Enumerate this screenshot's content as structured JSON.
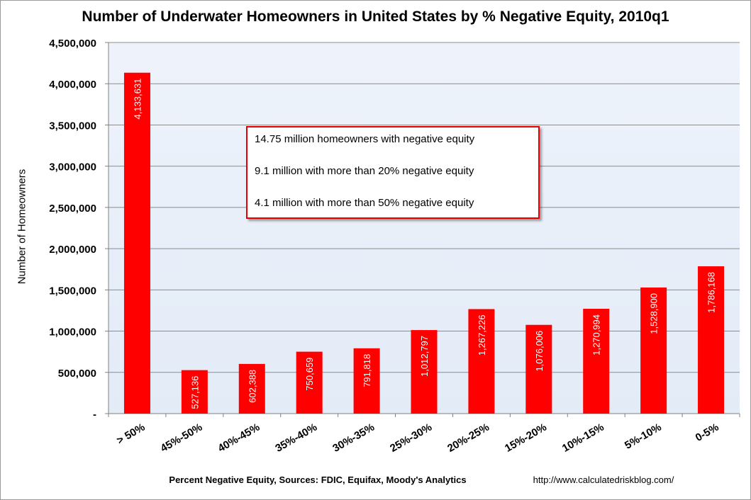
{
  "chart_data": {
    "type": "bar",
    "title": "Number of Underwater Homeowners in United States by % Negative Equity, 2010q1",
    "xlabel": "Percent Negative Equity, Sources: FDIC, Equifax, Moody's Analytics",
    "ylabel": "Number of Homeowners",
    "source": "http://www.calculatedriskblog.com/",
    "categories": [
      "> 50%",
      "45%-50%",
      "40%-45%",
      "35%-40%",
      "30%-35%",
      "25%-30%",
      "20%-25%",
      "15%-20%",
      "10%-15%",
      "5%-10%",
      "0-5%"
    ],
    "values": [
      4133631,
      527136,
      602388,
      750659,
      791818,
      1012797,
      1267226,
      1076006,
      1270994,
      1528900,
      1786168
    ],
    "data_labels": [
      "4,133,631",
      "527,136",
      "602,388",
      "750,659",
      "791,818",
      "1,012,797",
      "1,267,226",
      "1,076,006",
      "1,270,994",
      "1,528,900",
      "1,786,168"
    ],
    "ylim": [
      0,
      4500000
    ],
    "y_ticks": [
      0,
      500000,
      1000000,
      1500000,
      2000000,
      2500000,
      3000000,
      3500000,
      4000000,
      4500000
    ],
    "y_tick_labels": [
      "-",
      "500,000",
      "1,000,000",
      "1,500,000",
      "2,000,000",
      "2,500,000",
      "3,000,000",
      "3,500,000",
      "4,000,000",
      "4,500,000"
    ],
    "grid": true,
    "legend": false,
    "bar_color": "#ff0000",
    "plot_background": "#e9f0fa",
    "annotations": [
      "14.75 million homeowners  with negative equity",
      "9.1 million with more than 20% negative equity",
      "4.1 million with more than 50% negative equity"
    ]
  }
}
